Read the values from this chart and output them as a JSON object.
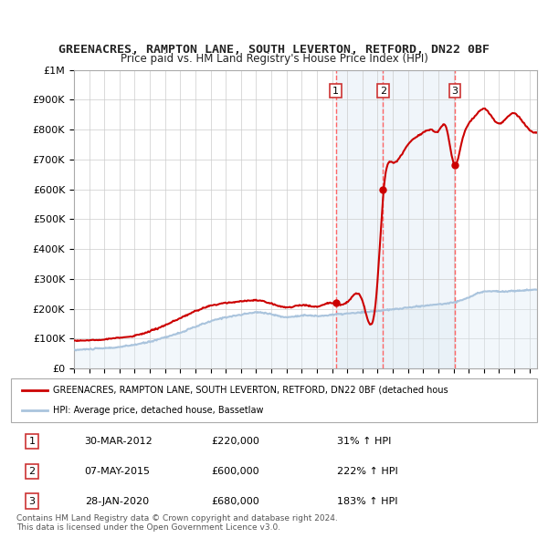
{
  "title": "GREENACRES, RAMPTON LANE, SOUTH LEVERTON, RETFORD, DN22 0BF",
  "subtitle": "Price paid vs. HM Land Registry's House Price Index (HPI)",
  "ylabel_ticks": [
    "£0",
    "£100K",
    "£200K",
    "£300K",
    "£400K",
    "£500K",
    "£600K",
    "£700K",
    "£800K",
    "£900K",
    "£1M"
  ],
  "ytick_values": [
    0,
    100000,
    200000,
    300000,
    400000,
    500000,
    600000,
    700000,
    800000,
    900000,
    1000000
  ],
  "xlim_start": 1995.0,
  "xlim_end": 2025.5,
  "ylim_min": 0,
  "ylim_max": 1000000,
  "sale_dates": [
    2012.247,
    2015.352,
    2020.074
  ],
  "sale_prices": [
    220000,
    600000,
    680000
  ],
  "sale_labels": [
    "1",
    "2",
    "3"
  ],
  "red_line_color": "#cc0000",
  "blue_line_color": "#aac4dd",
  "blue_fill_color": "#dceaf4",
  "dashed_line_color": "#ff6666",
  "background_color": "#ffffff",
  "plot_bg_color": "#ffffff",
  "legend_line1": "GREENACRES, RAMPTON LANE, SOUTH LEVERTON, RETFORD, DN22 0BF (detached hous",
  "legend_line2": "HPI: Average price, detached house, Bassetlaw",
  "table_rows": [
    [
      "1",
      "30-MAR-2012",
      "£220,000",
      "31% ↑ HPI"
    ],
    [
      "2",
      "07-MAY-2015",
      "£600,000",
      "222% ↑ HPI"
    ],
    [
      "3",
      "28-JAN-2020",
      "£680,000",
      "183% ↑ HPI"
    ]
  ],
  "footnote": "Contains HM Land Registry data © Crown copyright and database right 2024.\nThis data is licensed under the Open Government Licence v3.0.",
  "title_color": "#222222",
  "grid_color": "#cccccc",
  "hpi_years": [
    1995,
    1996,
    1997,
    1998,
    1999,
    2000,
    2001,
    2002,
    2003,
    2004,
    2005,
    2006,
    2007,
    2008,
    2009,
    2010,
    2011,
    2012,
    2013,
    2014,
    2015,
    2016,
    2017,
    2018,
    2019,
    2020,
    2021,
    2022,
    2023,
    2024,
    2025,
    2025.5
  ],
  "hpi_prices": [
    62000,
    65000,
    68000,
    72000,
    80000,
    90000,
    105000,
    120000,
    140000,
    158000,
    172000,
    180000,
    188000,
    182000,
    172000,
    178000,
    176000,
    180000,
    184000,
    188000,
    193000,
    198000,
    204000,
    210000,
    215000,
    222000,
    238000,
    258000,
    258000,
    260000,
    263000,
    265000
  ],
  "red_years": [
    1995,
    1996,
    1997,
    1998,
    1999,
    2000,
    2001,
    2002,
    2003,
    2004,
    2005,
    2006,
    2007,
    2008,
    2009,
    2010,
    2011,
    2012.0,
    2012.5,
    2013,
    2014,
    2014.9,
    2015.4,
    2016,
    2017,
    2018,
    2018.5,
    2019,
    2019.5,
    2020.1,
    2020.5,
    2021,
    2021.5,
    2022,
    2022.5,
    2023,
    2023.5,
    2024,
    2024.5,
    2025,
    2025.5
  ],
  "red_prices": [
    92000,
    95000,
    98000,
    103000,
    110000,
    125000,
    145000,
    168000,
    192000,
    210000,
    220000,
    225000,
    228000,
    218000,
    205000,
    212000,
    208000,
    220000,
    215000,
    222000,
    228000,
    235000,
    600000,
    690000,
    750000,
    790000,
    800000,
    795000,
    810000,
    680000,
    750000,
    820000,
    850000,
    870000,
    845000,
    820000,
    840000,
    855000,
    830000,
    800000,
    790000
  ]
}
